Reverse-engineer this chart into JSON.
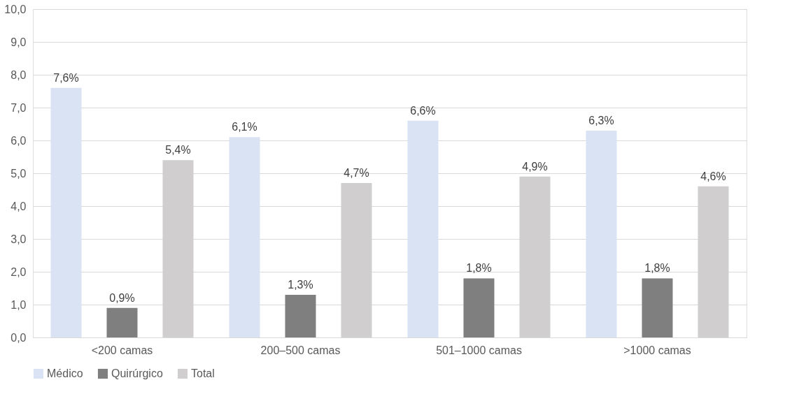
{
  "chart_data": {
    "type": "bar",
    "categories": [
      "<200 camas",
      "200–500  camas",
      "501–1000  camas",
      ">1000  camas"
    ],
    "series": [
      {
        "name": "Médico",
        "color": "#dae3f3",
        "values": [
          7.6,
          6.1,
          6.6,
          6.3
        ],
        "value_labels": [
          "7,6%",
          "6,1%",
          "6,6%",
          "6,3%"
        ]
      },
      {
        "name": "Quirúrgico",
        "color": "#7f7f7f",
        "values": [
          0.9,
          1.3,
          1.8,
          1.8
        ],
        "value_labels": [
          "0,9%",
          "1,3%",
          "1,8%",
          "1,8%"
        ]
      },
      {
        "name": "Total",
        "color": "#d0cece",
        "values": [
          5.4,
          4.7,
          4.9,
          4.6
        ],
        "value_labels": [
          "5,4%",
          "4,7%",
          "4,9%",
          "4,6%"
        ]
      }
    ],
    "ylim": [
      0,
      10
    ],
    "yticks": [
      {
        "value": 0,
        "label": "0,0"
      },
      {
        "value": 1,
        "label": "1,0"
      },
      {
        "value": 2,
        "label": "2,0"
      },
      {
        "value": 3,
        "label": "3,0"
      },
      {
        "value": 4,
        "label": "4,0"
      },
      {
        "value": 5,
        "label": "5,0"
      },
      {
        "value": 6,
        "label": "6,0"
      },
      {
        "value": 7,
        "label": "7,0"
      },
      {
        "value": 8,
        "label": "8,0"
      },
      {
        "value": 9,
        "label": "9,0"
      },
      {
        "value": 10,
        "label": "10,0"
      }
    ],
    "grid": "y",
    "legend": "bottom"
  }
}
